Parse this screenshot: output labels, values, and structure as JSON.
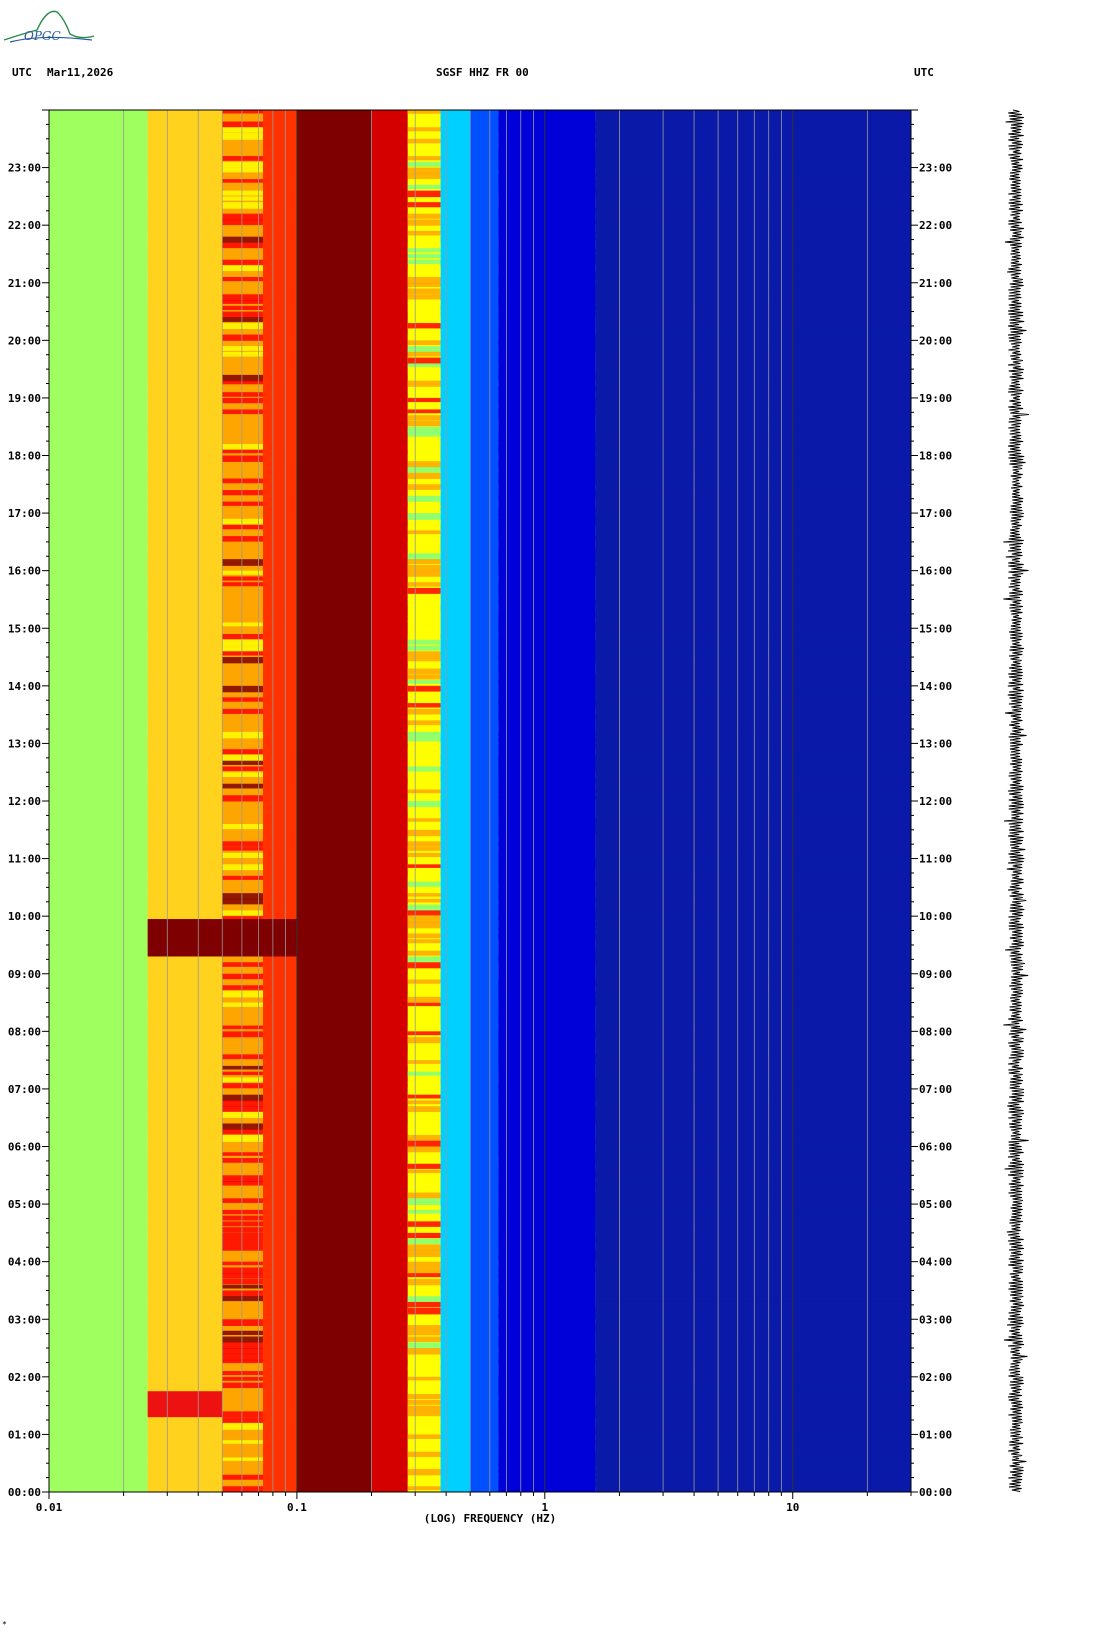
{
  "header": {
    "left_tz": "UTC",
    "date": "Mar11,2026",
    "station": "SGSF HHZ FR 00",
    "right_tz": "UTC"
  },
  "logo": {
    "text": "OPGC"
  },
  "chart_data": {
    "type": "heatmap",
    "xlabel": "(LOG) FREQUENCY (HZ)",
    "x_scale": "log",
    "xlim": [
      0.01,
      30
    ],
    "x_tick_labels": [
      {
        "value": 0.01,
        "label": "0.01"
      },
      {
        "value": 0.1,
        "label": "0.1"
      },
      {
        "value": 1,
        "label": "1"
      },
      {
        "value": 10,
        "label": "10"
      }
    ],
    "y_tick_labels": [
      "00:00",
      "01:00",
      "02:00",
      "03:00",
      "04:00",
      "05:00",
      "06:00",
      "07:00",
      "08:00",
      "09:00",
      "10:00",
      "11:00",
      "12:00",
      "13:00",
      "14:00",
      "15:00",
      "16:00",
      "17:00",
      "18:00",
      "19:00",
      "20:00",
      "21:00",
      "22:00",
      "23:00"
    ],
    "ylim_hours": [
      0,
      24
    ],
    "colormap": [
      "#00007f",
      "#0000ff",
      "#00bfff",
      "#7fff7f",
      "#ffff00",
      "#ffa500",
      "#ff0000",
      "#7f0000"
    ],
    "frequency_bands": [
      {
        "f_min": 0.01,
        "f_max": 0.025,
        "typical_color": "#9fff5f"
      },
      {
        "f_min": 0.025,
        "f_max": 0.05,
        "typical_color": "#ffd21e"
      },
      {
        "f_min": 0.05,
        "f_max": 0.073,
        "typical_color": "#ffa500"
      },
      {
        "f_min": 0.073,
        "f_max": 0.1,
        "typical_color": "#ff3300"
      },
      {
        "f_min": 0.1,
        "f_max": 0.2,
        "typical_color": "#7f0000"
      },
      {
        "f_min": 0.2,
        "f_max": 0.28,
        "typical_color": "#d40000"
      },
      {
        "f_min": 0.28,
        "f_max": 0.38,
        "typical_color": "#ffff00"
      },
      {
        "f_min": 0.38,
        "f_max": 0.5,
        "typical_color": "#00d0ff"
      },
      {
        "f_min": 0.5,
        "f_max": 0.65,
        "typical_color": "#0050ff"
      },
      {
        "f_min": 0.65,
        "f_max": 1.6,
        "typical_color": "#0000d8"
      },
      {
        "f_min": 1.6,
        "f_max": 30,
        "typical_color": "#0a1aa8"
      }
    ],
    "events": [
      {
        "start_hour": 9.3,
        "end_hour": 9.95,
        "f_min": 0.025,
        "f_max": 0.1,
        "color": "#7f0000"
      },
      {
        "start_hour": 1.3,
        "end_hour": 1.75,
        "f_min": 0.025,
        "f_max": 0.05,
        "color": "#ee1111"
      }
    ],
    "trace": {
      "label": "seismogram",
      "color": "#000000"
    }
  },
  "footnote": "*"
}
